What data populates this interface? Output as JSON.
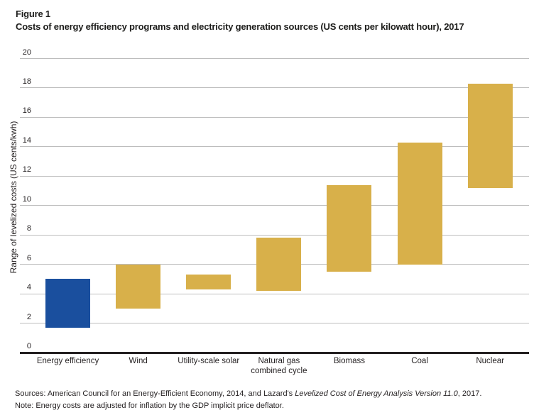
{
  "figure": {
    "label": "Figure 1",
    "title": "Costs of energy efficiency programs and electricity generation sources (US cents per kilowatt hour), 2017"
  },
  "chart_data": {
    "type": "bar",
    "subtype": "floating-range-columns",
    "title": "Figure 1",
    "subtitle": "Costs of energy efficiency programs and electricity generation sources (US cents per kilowatt hour), 2017",
    "xlabel": "",
    "ylabel": "Range of levelized costs (US cents/kwh)",
    "ylim": [
      0,
      20
    ],
    "ytick_step": 2,
    "grid": true,
    "legend": "none",
    "categories": [
      "Energy efficiency",
      "Wind",
      "Utility-scale solar",
      "Natural gas combined cycle",
      "Biomass",
      "Coal",
      "Nuclear"
    ],
    "category_labels": [
      "Energy efficiency",
      "Wind",
      "Utility-scale solar",
      "Natural gas\ncombined cycle",
      "Biomass",
      "Coal",
      "Nuclear"
    ],
    "series": [
      {
        "name": "Range of levelized costs (US cents/kwh)",
        "low": [
          1.7,
          3.0,
          4.3,
          4.2,
          5.5,
          6.0,
          11.2
        ],
        "high": [
          5.0,
          6.0,
          5.3,
          7.8,
          11.4,
          14.3,
          18.3
        ]
      }
    ],
    "bar_colors": [
      "#1a4f9e",
      "#d8b04a",
      "#d8b04a",
      "#d8b04a",
      "#d8b04a",
      "#d8b04a",
      "#d8b04a"
    ],
    "highlight_color": "#1a4f9e",
    "default_color": "#d8b04a"
  },
  "footer": {
    "sources_prefix": "Sources: American Council for an Energy-Efficient Economy, 2014,  and Lazard's ",
    "sources_italic": "Levelized Cost of Energy Analysis Version 11.0",
    "sources_suffix": ", 2017.",
    "note": "Note: Energy costs are adjusted for inflation by the GDP implicit price deflator."
  }
}
